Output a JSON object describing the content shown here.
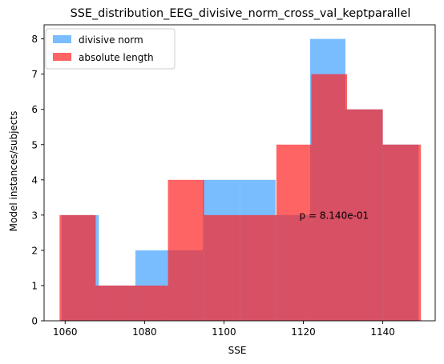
{
  "chart_data": {
    "type": "bar",
    "title": "SSE_distribution_EEG_divisive_norm_cross_val_keptparallel",
    "xlabel": "SSE",
    "ylabel": "Model instances/subjects",
    "xlim": [
      1054.7,
      1153.2
    ],
    "ylim": [
      0,
      8.4
    ],
    "xticks": [
      1060,
      1080,
      1100,
      1120,
      1140
    ],
    "yticks": [
      0,
      1,
      2,
      3,
      4,
      5,
      6,
      7,
      8
    ],
    "legend_position": "top-left",
    "annotation": "p = 8.140e-01",
    "annotation_x": 1119,
    "annotation_y": 3,
    "colors": {
      "series_0": "#3399ff",
      "series_1": "#ff2222",
      "overlap": "#c74a60"
    },
    "series": [
      {
        "name": "divisive norm",
        "alpha": 0.65,
        "edges": [
          1058.8,
          1068.2,
          1077.7,
          1087.1,
          1096.5,
          1105.9,
          1115.3,
          1124.7,
          1134.1,
          1143.6,
          1149.0
        ],
        "bins": [
          {
            "x0": 1059.1,
            "x1": 1068.5,
            "count": 3
          },
          {
            "x0": 1068.5,
            "x1": 1077.7,
            "count": 1
          },
          {
            "x0": 1077.7,
            "x1": 1086.0,
            "count": 2
          },
          {
            "x0": 1086.0,
            "x1": 1094.7,
            "count": 2
          },
          {
            "x0": 1094.7,
            "x1": 1104.0,
            "count": 4
          },
          {
            "x0": 1104.0,
            "x1": 1113.0,
            "count": 4
          },
          {
            "x0": 1113.0,
            "x1": 1121.7,
            "count": 3
          },
          {
            "x0": 1121.7,
            "x1": 1130.6,
            "count": 8
          },
          {
            "x0": 1130.6,
            "x1": 1140.0,
            "count": 6
          },
          {
            "x0": 1140.0,
            "x1": 1149.0,
            "count": 5
          }
        ]
      },
      {
        "name": "absolute length",
        "alpha": 0.7,
        "bins": [
          {
            "x0": 1058.6,
            "x1": 1067.7,
            "count": 3
          },
          {
            "x0": 1067.7,
            "x1": 1077.0,
            "count": 1
          },
          {
            "x0": 1077.0,
            "x1": 1085.9,
            "count": 1
          },
          {
            "x0": 1085.9,
            "x1": 1095.0,
            "count": 4
          },
          {
            "x0": 1095.0,
            "x1": 1104.0,
            "count": 3
          },
          {
            "x0": 1104.0,
            "x1": 1113.2,
            "count": 3
          },
          {
            "x0": 1113.2,
            "x1": 1122.0,
            "count": 5
          },
          {
            "x0": 1122.0,
            "x1": 1131.0,
            "count": 7
          },
          {
            "x0": 1131.0,
            "x1": 1140.0,
            "count": 6
          },
          {
            "x0": 1140.0,
            "x1": 1149.6,
            "count": 5
          }
        ]
      }
    ]
  }
}
